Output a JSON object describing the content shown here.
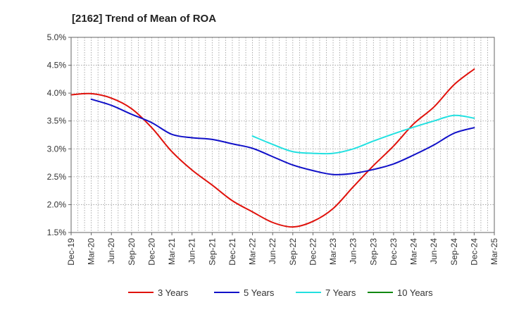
{
  "chart_data": {
    "type": "line",
    "title": "[2162]  Trend of Mean of ROA",
    "xlabel": "",
    "ylabel": "",
    "ylim": [
      1.5,
      5.0
    ],
    "y_ticks": [
      "1.5%",
      "2.0%",
      "2.5%",
      "3.0%",
      "3.5%",
      "4.0%",
      "4.5%",
      "5.0%"
    ],
    "y_tick_values": [
      1.5,
      2.0,
      2.5,
      3.0,
      3.5,
      4.0,
      4.5,
      5.0
    ],
    "categories": [
      "Dec-19",
      "Mar-20",
      "Jun-20",
      "Sep-20",
      "Dec-20",
      "Mar-21",
      "Jun-21",
      "Sep-21",
      "Dec-21",
      "Mar-22",
      "Jun-22",
      "Sep-22",
      "Dec-22",
      "Mar-23",
      "Jun-23",
      "Sep-23",
      "Dec-23",
      "Mar-24",
      "Jun-24",
      "Sep-24",
      "Dec-24",
      "Mar-25"
    ],
    "grid": true,
    "legend_position": "bottom",
    "series": [
      {
        "name": "3 Years",
        "color": "#e0120c",
        "values": [
          3.97,
          3.99,
          3.91,
          3.72,
          3.38,
          2.95,
          2.62,
          2.35,
          2.07,
          1.87,
          1.68,
          1.6,
          1.7,
          1.93,
          2.32,
          2.7,
          3.05,
          3.45,
          3.75,
          4.15,
          4.43,
          null
        ]
      },
      {
        "name": "5 Years",
        "color": "#1010c8",
        "values": [
          null,
          3.89,
          3.78,
          3.62,
          3.47,
          3.26,
          3.2,
          3.17,
          3.09,
          3.01,
          2.86,
          2.71,
          2.61,
          2.54,
          2.56,
          2.63,
          2.73,
          2.89,
          3.07,
          3.28,
          3.38,
          null
        ]
      },
      {
        "name": "7 Years",
        "color": "#22e0e0",
        "values": [
          null,
          null,
          null,
          null,
          null,
          null,
          null,
          null,
          null,
          3.23,
          3.08,
          2.95,
          2.92,
          2.92,
          3.0,
          3.14,
          3.27,
          3.39,
          3.5,
          3.6,
          3.55,
          null
        ]
      },
      {
        "name": "10 Years",
        "color": "#118811",
        "values": [
          null,
          null,
          null,
          null,
          null,
          null,
          null,
          null,
          null,
          null,
          null,
          null,
          null,
          null,
          null,
          null,
          null,
          null,
          null,
          null,
          null,
          null
        ]
      }
    ]
  }
}
